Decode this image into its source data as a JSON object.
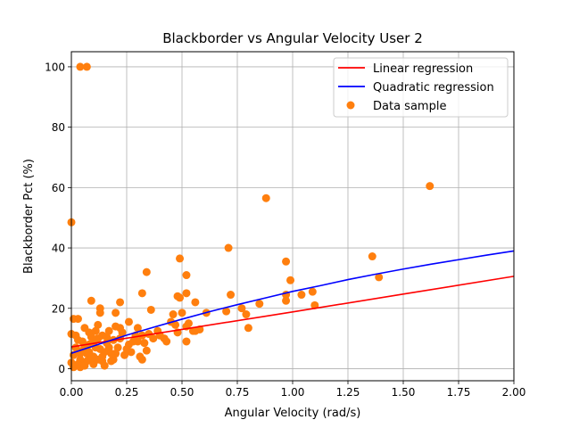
{
  "chart_data": {
    "type": "scatter",
    "title": "Blackborder vs Angular Velocity User 2",
    "xlabel": "Angular Velocity (rad/s)",
    "ylabel": "Blackborder Pct (%)",
    "xlim": [
      0.0,
      2.0
    ],
    "ylim": [
      -4.0,
      105.0
    ],
    "xticks": [
      "0.00",
      "0.25",
      "0.50",
      "0.75",
      "1.00",
      "1.25",
      "1.50",
      "1.75",
      "2.00"
    ],
    "yticks": [
      "0",
      "20",
      "40",
      "60",
      "80",
      "100"
    ],
    "grid": true,
    "legend_position": "top-right",
    "colors": {
      "linear": "#ff0000",
      "quadratic": "#0000ff",
      "sample": "#ff7f0e"
    },
    "linear_regression": {
      "name": "Linear regression",
      "x": [
        0.0,
        0.5,
        1.0,
        1.5,
        2.0
      ],
      "y": [
        7.2,
        13.0,
        18.8,
        24.7,
        30.6
      ]
    },
    "quadratic_regression": {
      "name": "Quadratic regression",
      "x": [
        0.0,
        0.125,
        0.25,
        0.375,
        0.5,
        0.625,
        0.75,
        0.875,
        1.0,
        1.125,
        1.25,
        1.375,
        1.5,
        1.625,
        1.75,
        1.875,
        2.0
      ],
      "y": [
        5.1,
        8.1,
        11.1,
        13.8,
        16.4,
        18.9,
        21.2,
        23.4,
        25.6,
        27.5,
        29.5,
        31.3,
        33.0,
        34.6,
        36.1,
        37.6,
        39.0
      ]
    },
    "data_sample": {
      "name": "Data sample",
      "points": [
        [
          0.04,
          100
        ],
        [
          0.07,
          100
        ],
        [
          0.0,
          48.5
        ],
        [
          0.88,
          56.5
        ],
        [
          1.62,
          60.5
        ],
        [
          0.71,
          40
        ],
        [
          0.97,
          35.5
        ],
        [
          1.36,
          37.2
        ],
        [
          1.39,
          30.3
        ],
        [
          0.99,
          29.3
        ],
        [
          0.49,
          36.5
        ],
        [
          0.34,
          32
        ],
        [
          0.52,
          31
        ],
        [
          0.72,
          24.5
        ],
        [
          0.97,
          24.5
        ],
        [
          1.04,
          24.5
        ],
        [
          1.09,
          25.5
        ],
        [
          0.97,
          22.5
        ],
        [
          1.1,
          21
        ],
        [
          0.85,
          21.5
        ],
        [
          0.77,
          20
        ],
        [
          0.79,
          18
        ],
        [
          0.7,
          19
        ],
        [
          0.8,
          13.5
        ],
        [
          0.61,
          18.5
        ],
        [
          0.56,
          22
        ],
        [
          0.52,
          25
        ],
        [
          0.48,
          24
        ],
        [
          0.49,
          23.5
        ],
        [
          0.32,
          25
        ],
        [
          0.36,
          19.5
        ],
        [
          0.46,
          18
        ],
        [
          0.5,
          18.5
        ],
        [
          0.53,
          15
        ],
        [
          0.52,
          14
        ],
        [
          0.55,
          12.5
        ],
        [
          0.56,
          12.5
        ],
        [
          0.48,
          12
        ],
        [
          0.47,
          14.5
        ],
        [
          0.52,
          9
        ],
        [
          0.42,
          10
        ],
        [
          0.43,
          9
        ],
        [
          0.39,
          12.5
        ],
        [
          0.37,
          10
        ],
        [
          0.34,
          6
        ],
        [
          0.31,
          4
        ],
        [
          0.32,
          3
        ],
        [
          0.3,
          13.5
        ],
        [
          0.32,
          11
        ],
        [
          0.3,
          9
        ],
        [
          0.26,
          15.5
        ],
        [
          0.26,
          8
        ],
        [
          0.27,
          5.5
        ],
        [
          0.22,
          22
        ],
        [
          0.2,
          18.5
        ],
        [
          0.13,
          20
        ],
        [
          0.13,
          18.5
        ],
        [
          0.09,
          22.5
        ],
        [
          0.22,
          13.5
        ],
        [
          0.22,
          10
        ],
        [
          0.21,
          7
        ],
        [
          0.2,
          5
        ],
        [
          0.19,
          3
        ],
        [
          0.17,
          12.5
        ],
        [
          0.16,
          8.5
        ],
        [
          0.15,
          5.5
        ],
        [
          0.14,
          2.5
        ],
        [
          0.15,
          1
        ],
        [
          0.12,
          14.5
        ],
        [
          0.12,
          10
        ],
        [
          0.11,
          7
        ],
        [
          0.1,
          4
        ],
        [
          0.1,
          1.5
        ],
        [
          0.08,
          12
        ],
        [
          0.08,
          8
        ],
        [
          0.07,
          5
        ],
        [
          0.07,
          2.5
        ],
        [
          0.06,
          13.5
        ],
        [
          0.05,
          9
        ],
        [
          0.05,
          6
        ],
        [
          0.04,
          3
        ],
        [
          0.04,
          0.5
        ],
        [
          0.03,
          16.5
        ],
        [
          0.01,
          16.5
        ],
        [
          0.02,
          11
        ],
        [
          0.02,
          7
        ],
        [
          0.01,
          4.5
        ],
        [
          0.0,
          11.5
        ],
        [
          0.0,
          2
        ],
        [
          0.01,
          0.5
        ],
        [
          0.03,
          1.5
        ],
        [
          0.06,
          1
        ],
        [
          0.09,
          10.5
        ],
        [
          0.09,
          3.5
        ],
        [
          0.1,
          8.5
        ],
        [
          0.11,
          12.5
        ],
        [
          0.13,
          6.5
        ],
        [
          0.14,
          4
        ],
        [
          0.16,
          10.5
        ],
        [
          0.17,
          7
        ],
        [
          0.18,
          2.5
        ],
        [
          0.19,
          9.5
        ],
        [
          0.23,
          12
        ],
        [
          0.24,
          4.5
        ],
        [
          0.25,
          6.5
        ],
        [
          0.28,
          9
        ],
        [
          0.29,
          11
        ],
        [
          0.33,
          8.5
        ],
        [
          0.35,
          11.5
        ],
        [
          0.4,
          11
        ],
        [
          0.45,
          15.5
        ],
        [
          0.58,
          13
        ],
        [
          0.04,
          5
        ],
        [
          0.06,
          7.5
        ],
        [
          0.08,
          5.5
        ],
        [
          0.12,
          3
        ],
        [
          0.14,
          11
        ],
        [
          0.18,
          5
        ],
        [
          0.2,
          14
        ],
        [
          0.03,
          9.5
        ]
      ]
    }
  }
}
